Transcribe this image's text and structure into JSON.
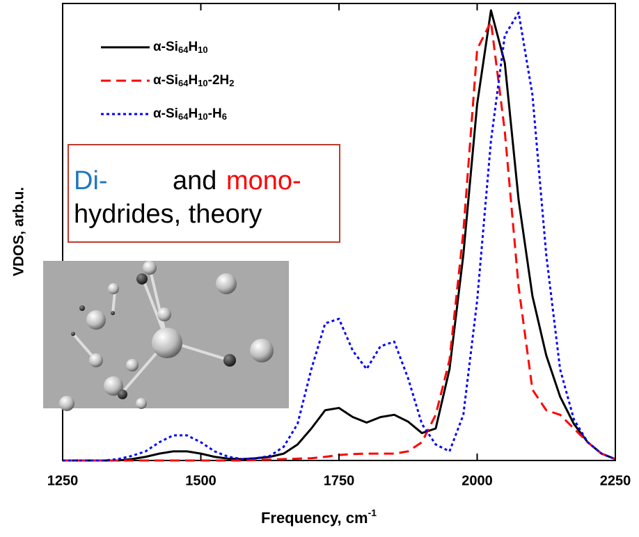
{
  "chart_data": {
    "type": "line",
    "x_label": "Frequency, cm-1",
    "y_label": "VDOS, arb.u.",
    "annotation": [
      "Di-",
      "and",
      "mono-",
      "hydrides, theory"
    ],
    "x": [
      1250,
      1275,
      1300,
      1325,
      1350,
      1375,
      1400,
      1425,
      1450,
      1475,
      1500,
      1525,
      1550,
      1575,
      1600,
      1625,
      1650,
      1675,
      1700,
      1725,
      1750,
      1775,
      1800,
      1825,
      1850,
      1875,
      1900,
      1925,
      1950,
      1975,
      2000,
      2025,
      2050,
      2075,
      2100,
      2125,
      2150,
      2175,
      2200,
      2225,
      2250
    ],
    "series": [
      {
        "name": "α-Si64H10",
        "color": "#000000",
        "dash": "none",
        "values": [
          0,
          0,
          0,
          0,
          0,
          0.003,
          0.008,
          0.015,
          0.02,
          0.02,
          0.015,
          0.008,
          0.004,
          0.003,
          0.005,
          0.008,
          0.015,
          0.035,
          0.07,
          0.11,
          0.115,
          0.095,
          0.083,
          0.095,
          0.1,
          0.085,
          0.06,
          0.07,
          0.2,
          0.45,
          0.78,
          0.985,
          0.87,
          0.57,
          0.36,
          0.23,
          0.14,
          0.08,
          0.04,
          0.015,
          0.003
        ]
      },
      {
        "name": "α-Si64H10-2H2",
        "color": "#ff0000",
        "dash": "14 8",
        "values": [
          0,
          0,
          0,
          0,
          0,
          0,
          0,
          0,
          0,
          0,
          0,
          0,
          0,
          0,
          0.001,
          0.002,
          0.003,
          0.004,
          0.005,
          0.008,
          0.012,
          0.014,
          0.015,
          0.015,
          0.015,
          0.02,
          0.04,
          0.1,
          0.22,
          0.5,
          0.9,
          0.96,
          0.72,
          0.38,
          0.155,
          0.11,
          0.1,
          0.07,
          0.04,
          0.015,
          0.003
        ]
      },
      {
        "name": "α-Si64H10-H6",
        "color": "#0000ff",
        "dash": "4 4",
        "values": [
          0,
          0,
          0,
          0,
          0.003,
          0.01,
          0.02,
          0.04,
          0.055,
          0.055,
          0.04,
          0.02,
          0.008,
          0.003,
          0.005,
          0.01,
          0.03,
          0.08,
          0.2,
          0.3,
          0.31,
          0.24,
          0.2,
          0.25,
          0.26,
          0.18,
          0.08,
          0.035,
          0.02,
          0.1,
          0.35,
          0.7,
          0.93,
          0.98,
          0.8,
          0.45,
          0.2,
          0.09,
          0.04,
          0.015,
          0.003
        ]
      }
    ],
    "xlim": [
      1250,
      2250
    ],
    "ylim": [
      0,
      1
    ],
    "xticks": [
      1250,
      1500,
      1750,
      2000,
      2250
    ]
  }
}
